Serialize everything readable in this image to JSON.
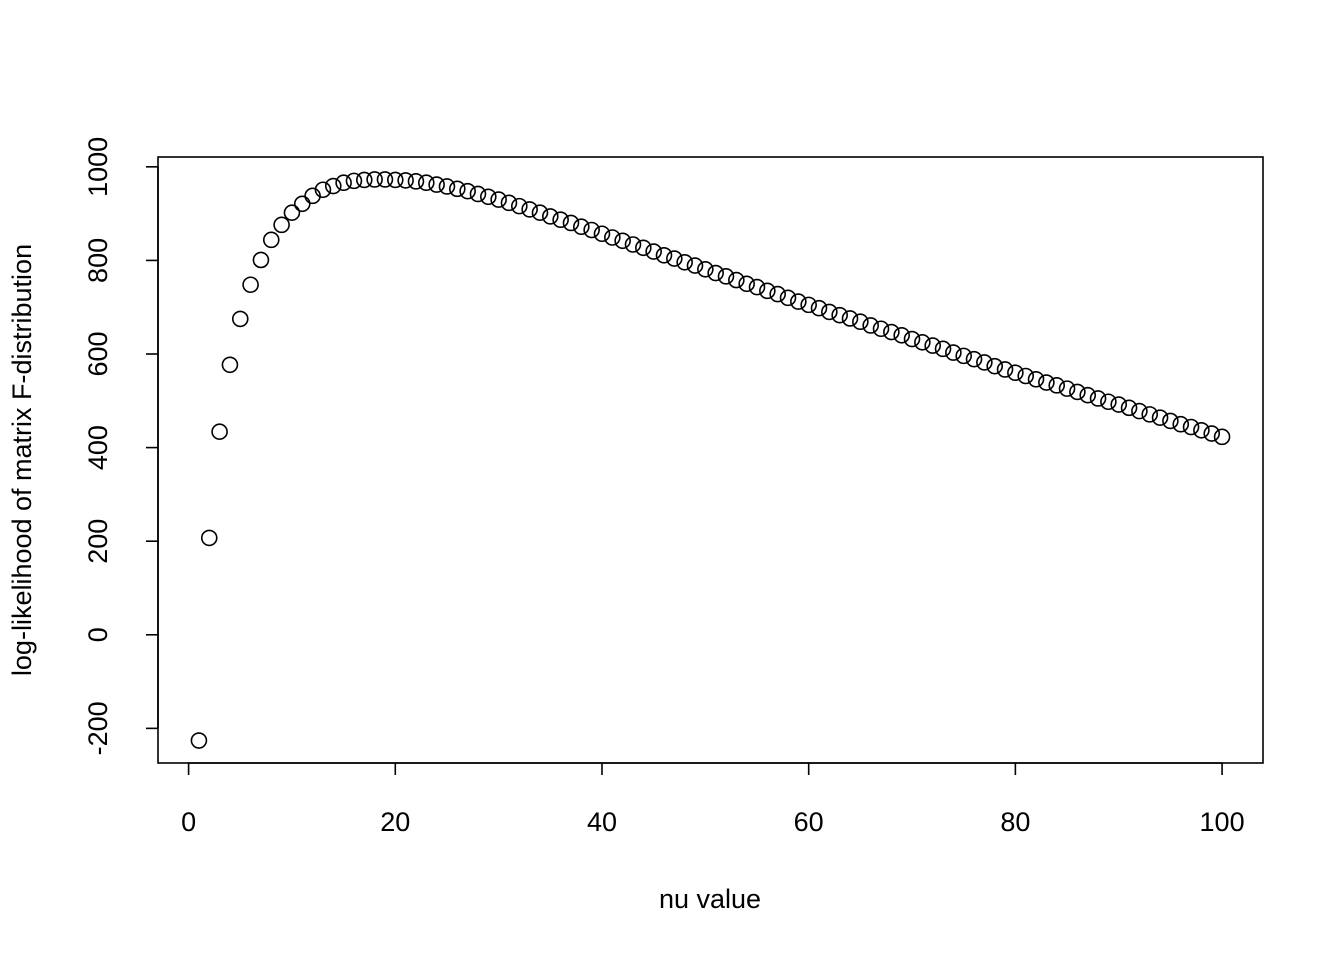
{
  "chart_data": {
    "type": "scatter",
    "x_label": "nu value",
    "y_label": "log-likelihood of matrix F-distribution",
    "x": [
      1,
      2,
      3,
      4,
      5,
      6,
      7,
      8,
      9,
      10,
      11,
      12,
      13,
      14,
      15,
      16,
      17,
      18,
      19,
      20,
      21,
      22,
      23,
      24,
      25,
      26,
      27,
      28,
      29,
      30,
      31,
      32,
      33,
      34,
      35,
      36,
      37,
      38,
      39,
      40,
      41,
      42,
      43,
      44,
      45,
      46,
      47,
      48,
      49,
      50,
      51,
      52,
      53,
      54,
      55,
      56,
      57,
      58,
      59,
      60,
      61,
      62,
      63,
      64,
      65,
      66,
      67,
      68,
      69,
      70,
      71,
      72,
      73,
      74,
      75,
      76,
      77,
      78,
      79,
      80,
      81,
      82,
      83,
      84,
      85,
      86,
      87,
      88,
      89,
      90,
      91,
      92,
      93,
      94,
      95,
      96,
      97,
      98,
      99,
      100
    ],
    "values": [
      -226,
      207,
      434,
      577,
      675,
      748,
      801,
      844,
      876,
      902,
      921,
      938,
      951,
      959,
      966,
      970,
      972,
      973,
      973,
      972,
      971,
      969,
      966,
      962,
      958,
      953,
      948,
      942,
      936,
      930,
      923,
      916,
      909,
      902,
      894,
      887,
      880,
      872,
      865,
      857,
      849,
      842,
      834,
      827,
      819,
      811,
      804,
      796,
      789,
      781,
      773,
      766,
      758,
      750,
      743,
      735,
      728,
      720,
      712,
      705,
      698,
      690,
      683,
      676,
      669,
      661,
      654,
      647,
      640,
      632,
      625,
      618,
      611,
      603,
      596,
      589,
      582,
      574,
      567,
      560,
      553,
      546,
      539,
      533,
      526,
      519,
      512,
      505,
      498,
      492,
      485,
      478,
      471,
      464,
      457,
      450,
      444,
      437,
      430,
      423
    ],
    "color": "#000000",
    "xlim": [
      -2.96,
      103.96
    ],
    "ylim": [
      -274,
      1021
    ],
    "xticks": [
      0,
      20,
      40,
      60,
      80,
      100
    ],
    "yticks": [
      -200,
      0,
      200,
      400,
      600,
      800,
      1000
    ]
  }
}
